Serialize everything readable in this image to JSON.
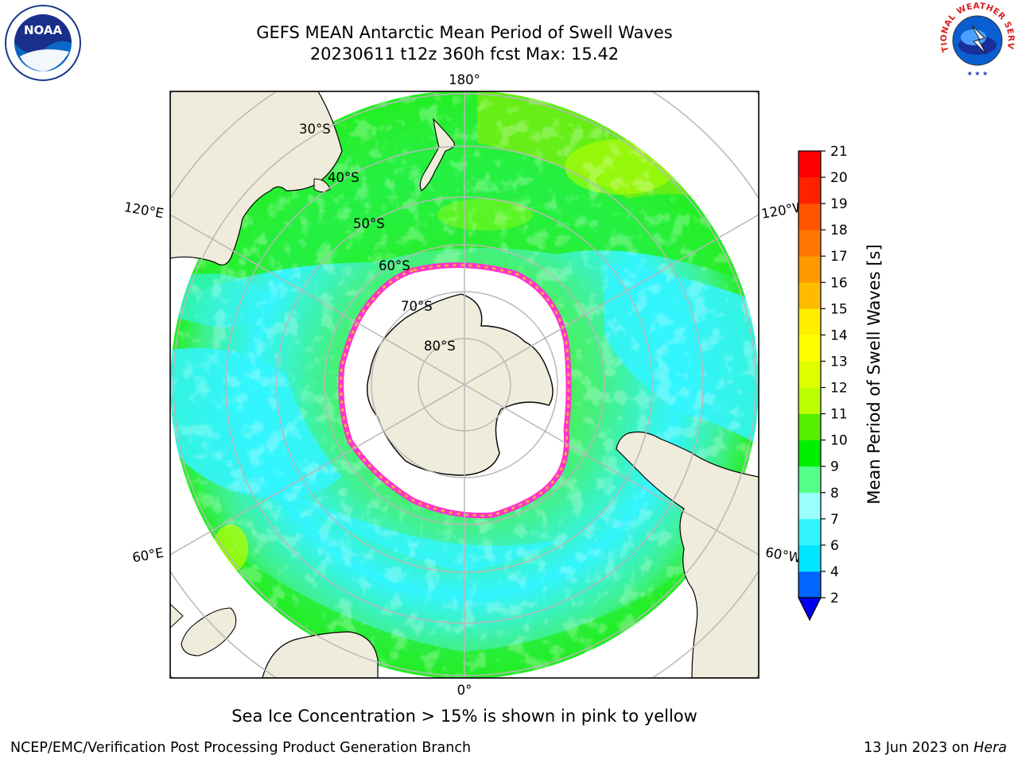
{
  "header": {
    "title_line1": "GEFS MEAN Antarctic Mean Period of Swell Waves",
    "title_line2": "20230611 t12z 360h fcst   Max: 15.42"
  },
  "logos": {
    "left": {
      "icon": "noaa-logo-icon",
      "text": "NOAA"
    },
    "right": {
      "icon": "nws-logo-icon",
      "text": "NATIONAL WEATHER SERVICE"
    }
  },
  "map": {
    "longitude_labels": {
      "top": "180°",
      "bottom": "0°",
      "upper_left": "120°E",
      "upper_right": "120°W",
      "lower_left": "60°E",
      "lower_right": "60°W"
    },
    "latitude_labels": [
      "30°S",
      "40°S",
      "50°S",
      "60°S",
      "70°S",
      "80°S"
    ],
    "colors": {
      "land": "#efecdc",
      "sea_ice_interior": "#ffffff",
      "ice_edge_pink": "#ff33cc",
      "ice_edge_orange": "#ffaa44",
      "grid": "#b8b8b8"
    }
  },
  "colorbar": {
    "label": "Mean Period of Swell Waves [s]",
    "ticks": [
      "2",
      "4",
      "6",
      "7",
      "8",
      "9",
      "10",
      "11",
      "12",
      "13",
      "14",
      "15",
      "16",
      "17",
      "18",
      "19",
      "20",
      "21"
    ],
    "colors": [
      "#0066ff",
      "#00e5ff",
      "#33f5ff",
      "#99ffff",
      "#55ff88",
      "#00ee00",
      "#55ee00",
      "#bbff00",
      "#ddff00",
      "#ffff00",
      "#ffee00",
      "#ffbb00",
      "#ff9900",
      "#ff7700",
      "#ff5500",
      "#ff2200",
      "#ff0000"
    ],
    "extend_color": "#0000ee"
  },
  "caption": "Sea Ice Concentration > 15% is shown in pink to yellow",
  "footer": {
    "left": "NCEP/EMC/Verification Post Processing Product Generation Branch",
    "date": "13 Jun 2023 on ",
    "host": "Hera"
  }
}
